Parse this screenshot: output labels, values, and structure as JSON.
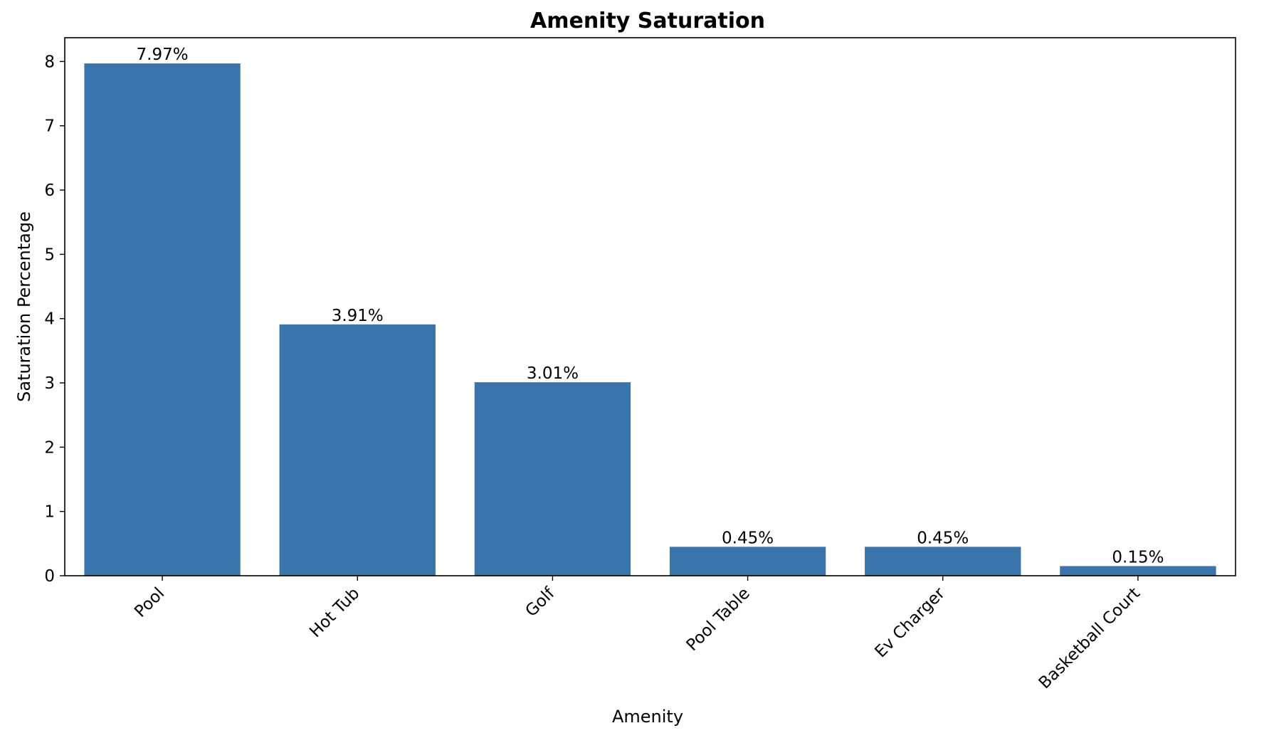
{
  "chart_data": {
    "type": "bar",
    "title": "Amenity Saturation",
    "xlabel": "Amenity",
    "ylabel": "Saturation Percentage",
    "categories": [
      "Pool",
      "Hot Tub",
      "Golf",
      "Pool Table",
      "Ev Charger",
      "Basketball Court"
    ],
    "values": [
      7.97,
      3.91,
      3.01,
      0.45,
      0.45,
      0.15
    ],
    "data_labels": [
      "7.97%",
      "3.91%",
      "3.01%",
      "0.45%",
      "0.45%",
      "0.15%"
    ],
    "ylim": [
      0,
      8.37
    ],
    "yticks": [
      "0",
      "1",
      "2",
      "3",
      "4",
      "5",
      "6",
      "7",
      "8"
    ],
    "grid": false,
    "bar_color": "#3b73ab"
  }
}
